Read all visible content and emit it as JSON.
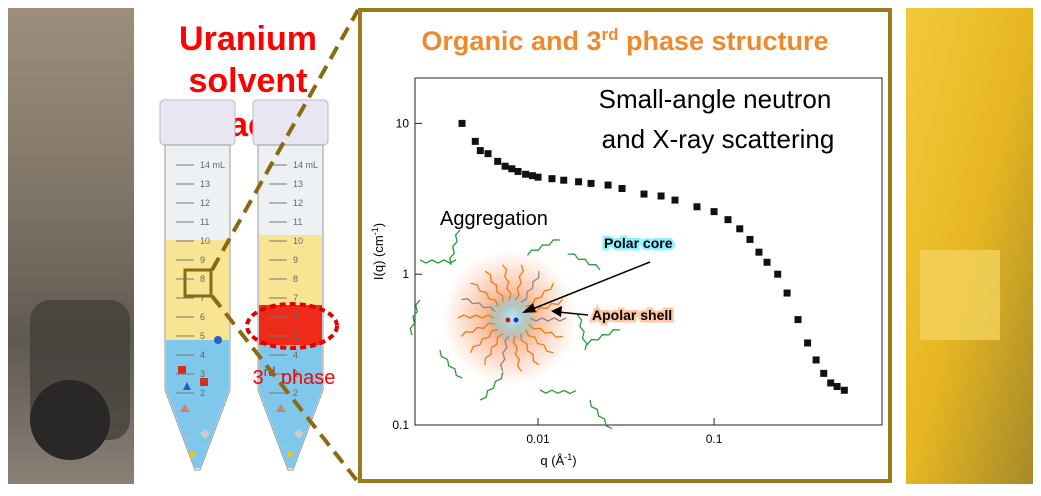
{
  "left_title": [
    "Uranium",
    "solvent",
    "extraction"
  ],
  "third_phase": [
    "3",
    "rd",
    " phase"
  ],
  "tube_scale": [
    "14 mL",
    "13",
    "12",
    "11",
    "10",
    "9",
    "8",
    "7",
    "6",
    "5",
    "4",
    "3",
    "2"
  ],
  "panel_title": [
    "Organic and 3",
    "rd",
    " phase structure"
  ],
  "chart_data": {
    "type": "scatter",
    "x_label": [
      "q (Å",
      "-1",
      ")"
    ],
    "y_label": [
      "I(q) (cm",
      "-1",
      ")"
    ],
    "annotations": [
      "Small-angle neutron",
      "and X-ray scattering",
      "Aggregation",
      "Polar core",
      "Apolar shell"
    ],
    "x": [
      0.0037,
      0.0044,
      0.0047,
      0.0052,
      0.0059,
      0.0065,
      0.0071,
      0.0077,
      0.0085,
      0.0093,
      0.01,
      0.012,
      0.014,
      0.017,
      0.02,
      0.025,
      0.03,
      0.04,
      0.05,
      0.06,
      0.08,
      0.1,
      0.12,
      0.14,
      0.16,
      0.18,
      0.2,
      0.23,
      0.26,
      0.3,
      0.34,
      0.38,
      0.42,
      0.46,
      0.5,
      0.55
    ],
    "y": [
      10,
      7.6,
      6.6,
      6.3,
      5.6,
      5.2,
      5.0,
      4.8,
      4.6,
      4.5,
      4.4,
      4.3,
      4.2,
      4.1,
      4.0,
      3.9,
      3.7,
      3.4,
      3.3,
      3.1,
      2.8,
      2.6,
      2.3,
      2.0,
      1.7,
      1.4,
      1.2,
      1.0,
      0.75,
      0.5,
      0.35,
      0.27,
      0.22,
      0.19,
      0.18,
      0.17
    ],
    "xlim": [
      0.002,
      0.9
    ],
    "ylim": [
      0.1,
      20
    ],
    "xticks": [
      0.01,
      0.1
    ],
    "yticks": [
      0.1,
      1,
      10
    ],
    "log_x": true,
    "log_y": true,
    "color": "#111111"
  }
}
